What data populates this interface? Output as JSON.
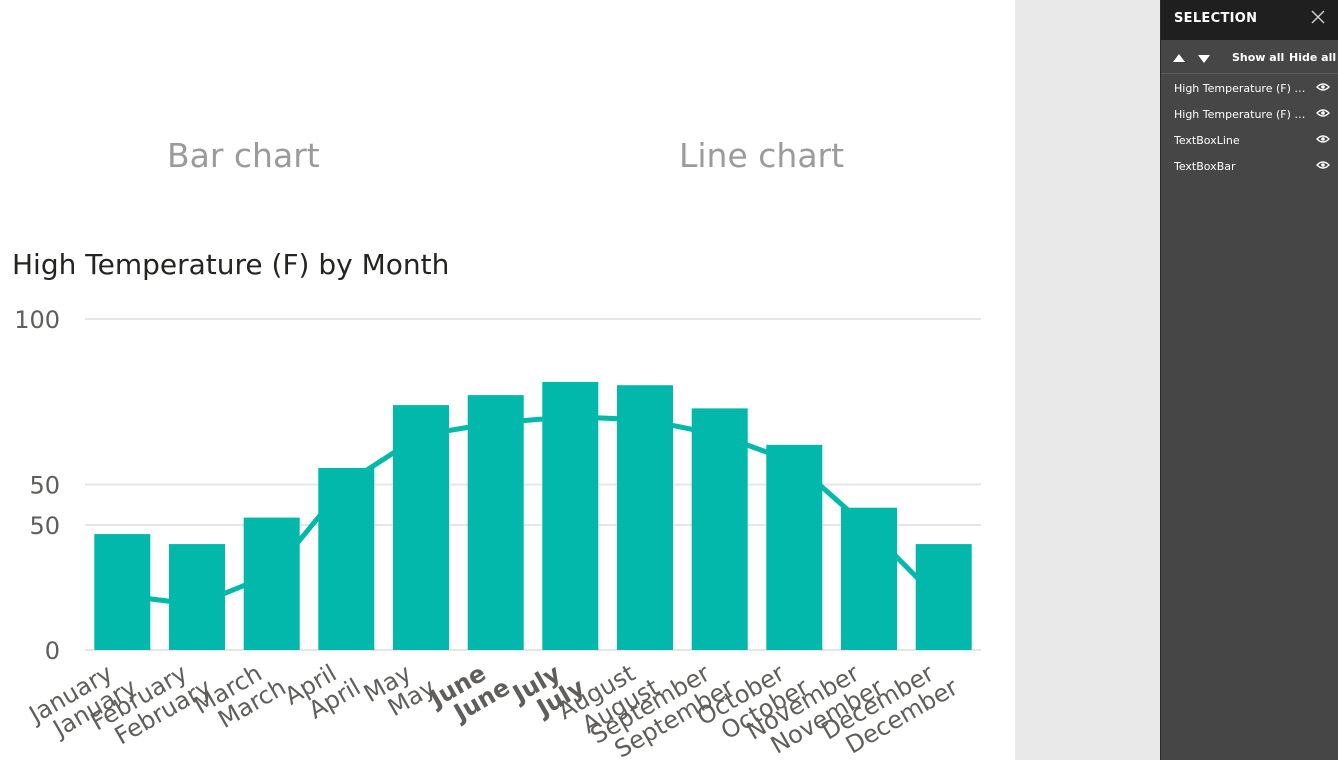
{
  "canvas": {
    "textbox_bar": "Bar chart",
    "textbox_line": "Line chart"
  },
  "chart_data": {
    "type": "bar",
    "title": "High Temperature (F) by Month",
    "categories": [
      "January",
      "February",
      "March",
      "April",
      "May",
      "June",
      "July",
      "August",
      "September",
      "October",
      "November",
      "December"
    ],
    "series": [
      {
        "name": "",
        "type": "bar",
        "values": [
          35,
          32,
          40,
          55,
          74,
          77,
          81,
          80,
          73,
          62,
          43,
          32
        ]
      },
      {
        "name": "",
        "type": "line",
        "values": [
          18,
          15,
          25,
          55,
          71,
          75,
          77,
          76,
          71,
          62,
          40,
          15
        ]
      }
    ],
    "y_ticks_bar": [
      "100",
      "50",
      "0"
    ],
    "y_ticks_line": [
      "50"
    ],
    "ylim": [
      0,
      100
    ],
    "bold_categories": [
      "June",
      "July"
    ],
    "grid": true,
    "color": "#01b8aa"
  },
  "selection_pane": {
    "title": "SELECTION",
    "show_all": "Show all",
    "hide_all": "Hide all",
    "items": [
      {
        "label": "High Temperature (F) b...",
        "icon": "eye-icon"
      },
      {
        "label": "High Temperature (F) b...",
        "icon": "eye-icon"
      },
      {
        "label": "TextBoxLine",
        "icon": "eye-icon"
      },
      {
        "label": "TextBoxBar",
        "icon": "eye-icon"
      }
    ]
  },
  "colors": {
    "accent": "#01b8aa",
    "pane_bg": "#464646",
    "pane_header": "#1f1f1f",
    "gutter": "#e9e9e9"
  }
}
